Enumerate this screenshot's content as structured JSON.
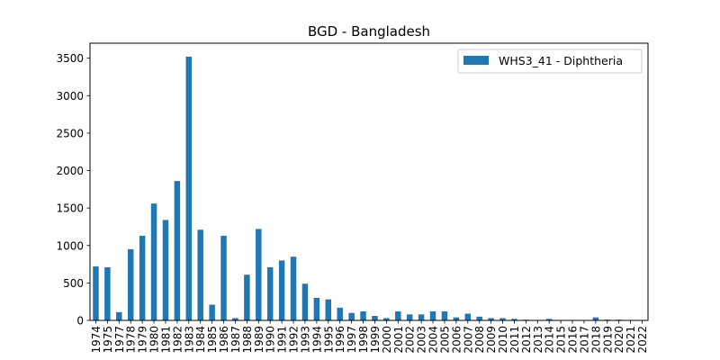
{
  "chart_data": {
    "type": "bar",
    "title": "BGD - Bangladesh",
    "xlabel": "",
    "ylabel": "",
    "categories": [
      "1974",
      "1975",
      "1977",
      "1978",
      "1979",
      "1980",
      "1981",
      "1982",
      "1983",
      "1984",
      "1985",
      "1986",
      "1987",
      "1988",
      "1989",
      "1990",
      "1991",
      "1992",
      "1993",
      "1994",
      "1995",
      "1996",
      "1997",
      "1998",
      "1999",
      "2000",
      "2001",
      "2002",
      "2003",
      "2004",
      "2005",
      "2006",
      "2007",
      "2008",
      "2009",
      "2010",
      "2011",
      "2012",
      "2013",
      "2014",
      "2015",
      "2016",
      "2017",
      "2018",
      "2019",
      "2020",
      "2021",
      "2022"
    ],
    "series": [
      {
        "name": "WHS3_41 - Diphtheria",
        "color": "#1f77b4",
        "values": [
          720,
          710,
          110,
          950,
          1130,
          1560,
          1340,
          1860,
          3520,
          1210,
          210,
          1130,
          30,
          610,
          1220,
          710,
          800,
          850,
          490,
          300,
          280,
          170,
          100,
          120,
          60,
          30,
          120,
          80,
          80,
          120,
          120,
          40,
          90,
          50,
          30,
          30,
          20,
          10,
          0,
          20,
          0,
          0,
          0,
          40,
          10,
          10,
          5,
          0
        ]
      }
    ],
    "ylim": [
      0,
      3700
    ],
    "yticks": [
      0,
      500,
      1000,
      1500,
      2000,
      2500,
      3000,
      3500
    ],
    "grid": false,
    "legend_position": "top-right"
  }
}
